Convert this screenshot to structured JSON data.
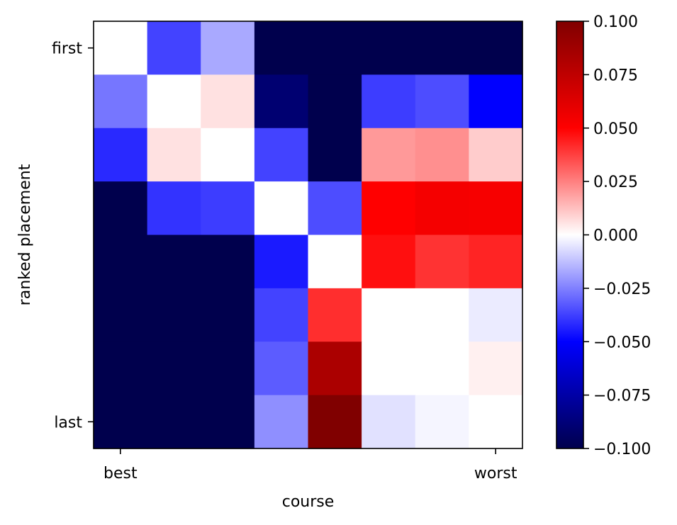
{
  "chart_data": {
    "type": "heatmap",
    "title": "",
    "xlabel": "course",
    "ylabel": "ranked placement",
    "x_ticks": [
      {
        "index": 0,
        "label": "best"
      },
      {
        "index": 7,
        "label": "worst"
      }
    ],
    "y_ticks": [
      {
        "index": 0,
        "label": "first"
      },
      {
        "index": 7,
        "label": "last"
      }
    ],
    "colormap": "seismic",
    "vmin": -0.1,
    "vmax": 0.1,
    "colorbar_ticks": [
      "0.100",
      "0.075",
      "0.050",
      "0.025",
      "0.000",
      "−0.025",
      "−0.050",
      "−0.075",
      "−0.100"
    ],
    "colorbar_values": [
      0.1,
      0.075,
      0.05,
      0.025,
      0.0,
      -0.025,
      -0.05,
      -0.075,
      -0.1
    ],
    "values": [
      [
        0.0,
        -0.037,
        -0.017,
        -0.1,
        -0.1,
        -0.1,
        -0.1,
        -0.1
      ],
      [
        -0.027,
        0.0,
        0.006,
        -0.09,
        -0.1,
        -0.038,
        -0.035,
        -0.05
      ],
      [
        -0.042,
        0.006,
        0.0,
        -0.037,
        -0.1,
        0.02,
        0.022,
        0.01
      ],
      [
        -0.1,
        -0.04,
        -0.038,
        0.0,
        -0.035,
        0.05,
        0.054,
        0.053
      ],
      [
        -0.1,
        -0.1,
        -0.1,
        -0.045,
        0.0,
        0.047,
        0.04,
        0.043
      ],
      [
        -0.1,
        -0.1,
        -0.1,
        -0.037,
        0.041,
        0.0,
        0.0,
        -0.004
      ],
      [
        -0.1,
        -0.1,
        -0.1,
        -0.032,
        0.083,
        0.0,
        0.0,
        0.003
      ],
      [
        -0.1,
        -0.1,
        -0.1,
        -0.022,
        0.1,
        -0.006,
        -0.002,
        0.0
      ]
    ]
  }
}
